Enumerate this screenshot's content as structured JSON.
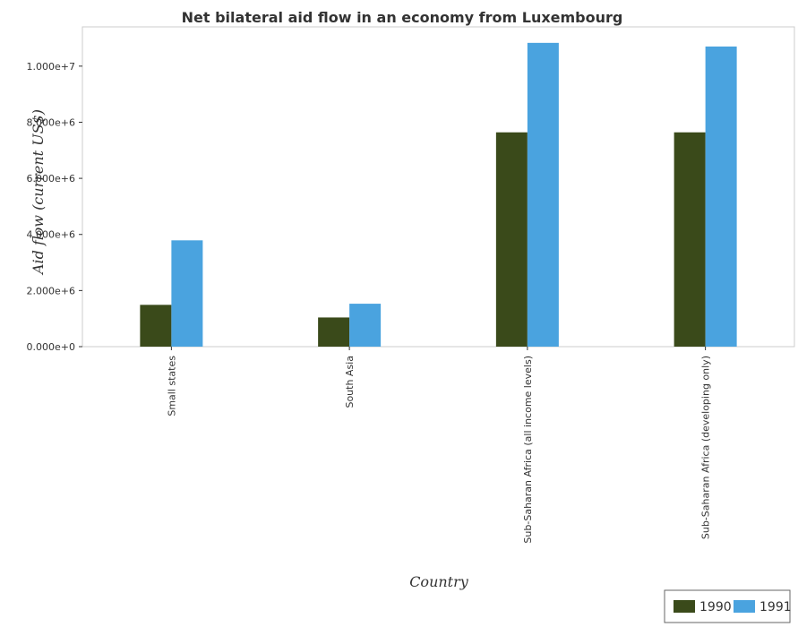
{
  "chart_data": {
    "type": "bar",
    "title": "Net bilateral aid flow in an economy from Luxembourg",
    "xlabel": "Country",
    "ylabel": "Aid flow (current US$)",
    "categories": [
      "Small states",
      "South Asia",
      "Sub-Saharan Africa (all income levels)",
      "Sub-Saharan Africa (developing only)"
    ],
    "series": [
      {
        "name": "1990",
        "color": "#3a4a1a",
        "values": [
          1490000,
          1040000,
          7640000,
          7640000
        ]
      },
      {
        "name": "1991",
        "color": "#4aa3df",
        "values": [
          3790000,
          1530000,
          10830000,
          10700000
        ]
      }
    ],
    "yticks": [
      "0.000e+0",
      "2.000e+6",
      "4.000e+6",
      "6.000e+6",
      "8.000e+6",
      "1.000e+7"
    ],
    "ytick_values": [
      0,
      2000000,
      4000000,
      6000000,
      8000000,
      10000000
    ],
    "ylim": [
      0,
      11400000
    ],
    "grid": false,
    "legend_position": "bottom-right"
  }
}
